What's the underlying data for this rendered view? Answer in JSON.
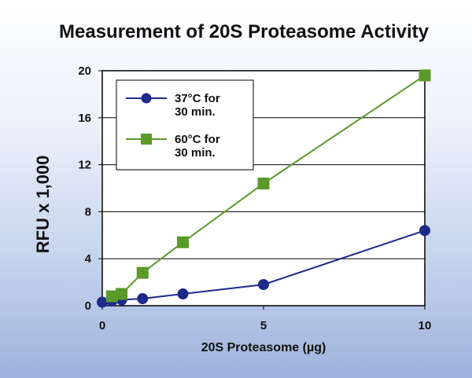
{
  "chart_data": {
    "type": "line",
    "title": "Measurement of 20S Proteasome Activity",
    "xlabel": "20S Proteasome (µg)",
    "ylabel": "RFU x 1,000",
    "xlim": [
      0,
      10
    ],
    "ylim": [
      0,
      20
    ],
    "x_ticks": [
      0,
      5,
      10
    ],
    "y_ticks": [
      0,
      4,
      8,
      12,
      16,
      20
    ],
    "grid": "horizontal",
    "legend_position": "top-left",
    "series": [
      {
        "name": "37°C for 30 min.",
        "name_lines": [
          "37°C for",
          "30 min."
        ],
        "marker": "circle",
        "color": "#1c2a8a",
        "x": [
          0,
          0.3,
          0.6,
          1.25,
          2.5,
          5,
          10
        ],
        "y": [
          0.3,
          0.4,
          0.5,
          0.6,
          1.0,
          1.8,
          6.4
        ]
      },
      {
        "name": "60°C for 30 min.",
        "name_lines": [
          "60°C for",
          "30 min."
        ],
        "marker": "square",
        "color": "#5a9a2a",
        "x": [
          0.3,
          0.6,
          1.25,
          2.5,
          5,
          10
        ],
        "y": [
          0.8,
          1.0,
          2.8,
          5.4,
          10.4,
          19.6
        ]
      }
    ]
  }
}
